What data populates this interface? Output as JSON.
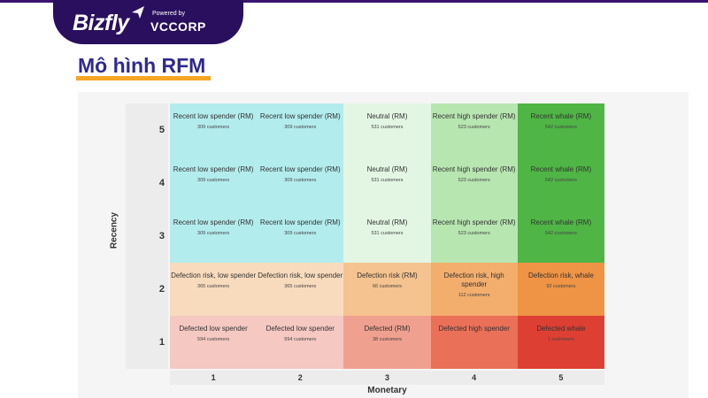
{
  "header": {
    "logo_text": "Bizfly",
    "powered_by": "Powered by",
    "partner": "VCCORP"
  },
  "page_title": "Mô hình RFM",
  "chart_data": {
    "type": "heatmap",
    "xlabel": "Monetary",
    "ylabel": "Recency",
    "x_ticks": [
      "1",
      "2",
      "3",
      "4",
      "5"
    ],
    "y_ticks": [
      "5",
      "4",
      "3",
      "2",
      "1"
    ],
    "rows": [
      {
        "recency": "5",
        "cells": [
          {
            "segment": "Recent low spender (RM)",
            "customers": "309 customers",
            "color": "#b3eced"
          },
          {
            "segment": "Recent low spender (RM)",
            "customers": "309 customers",
            "color": "#b3eced"
          },
          {
            "segment": "Neutral (RM)",
            "customers": "531 customers",
            "color": "#e3f6e3"
          },
          {
            "segment": "Recent high spender (RM)",
            "customers": "523 customers",
            "color": "#b7e6b0"
          },
          {
            "segment": "Recent whale (RM)",
            "customers": "542 customers",
            "color": "#4fb545"
          }
        ]
      },
      {
        "recency": "4",
        "cells": [
          {
            "segment": "Recent low spender (RM)",
            "customers": "309 customers",
            "color": "#b3eced"
          },
          {
            "segment": "Recent low spender (RM)",
            "customers": "309 customers",
            "color": "#b3eced"
          },
          {
            "segment": "Neutral (RM)",
            "customers": "531 customers",
            "color": "#e3f6e3"
          },
          {
            "segment": "Recent high spender (RM)",
            "customers": "523 customers",
            "color": "#b7e6b0"
          },
          {
            "segment": "Recent whale (RM)",
            "customers": "542 customers",
            "color": "#4fb545"
          }
        ]
      },
      {
        "recency": "3",
        "cells": [
          {
            "segment": "Recent low spender (RM)",
            "customers": "309 customers",
            "color": "#b3eced"
          },
          {
            "segment": "Recent low spender (RM)",
            "customers": "309 customers",
            "color": "#b3eced"
          },
          {
            "segment": "Neutral (RM)",
            "customers": "531 customers",
            "color": "#e3f6e3"
          },
          {
            "segment": "Recent high spender (RM)",
            "customers": "523 customers",
            "color": "#b7e6b0"
          },
          {
            "segment": "Recent whale (RM)",
            "customers": "542 customers",
            "color": "#4fb545"
          }
        ]
      },
      {
        "recency": "2",
        "cells": [
          {
            "segment": "Defection risk, low spender",
            "customers": "365 customers",
            "color": "#f8dbbd"
          },
          {
            "segment": "Defection risk, low spender",
            "customers": "365 customers",
            "color": "#f8dbbd"
          },
          {
            "segment": "Defection risk (RM)",
            "customers": "66 customers",
            "color": "#f5c38f"
          },
          {
            "segment": "Defection risk, high spender",
            "customers": "112 customers",
            "color": "#f3ae6e"
          },
          {
            "segment": "Defection risk, whale",
            "customers": "92 customers",
            "color": "#ee9444"
          }
        ]
      },
      {
        "recency": "1",
        "cells": [
          {
            "segment": "Defected low spender",
            "customers": "594 customers",
            "color": "#f5c8c2"
          },
          {
            "segment": "Defected low spender",
            "customers": "594 customers",
            "color": "#f5c8c2"
          },
          {
            "segment": "Defected (RM)",
            "customers": "38 customers",
            "color": "#f0a08f"
          },
          {
            "segment": "Defected high spender",
            "customers": "",
            "color": "#ea7058"
          },
          {
            "segment": "Defected whale",
            "customers": "1 customers",
            "color": "#de3f33"
          }
        ]
      }
    ]
  }
}
